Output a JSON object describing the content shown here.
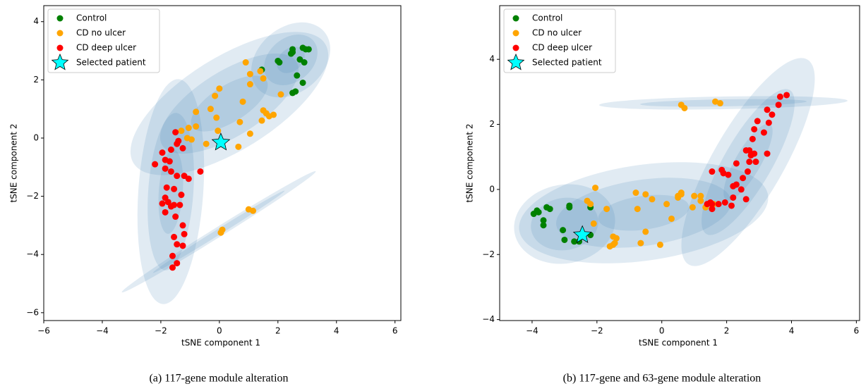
{
  "chart_data": [
    {
      "type": "scatter",
      "caption": "(a) 117-gene module alteration",
      "xlabel": "tSNE component 1",
      "ylabel": "tSNE component 2",
      "xlim": [
        -6,
        6.2
      ],
      "ylim": [
        -6.27,
        4.55
      ],
      "xticks": [
        {
          "value": -6,
          "label": "−6"
        },
        {
          "value": -4,
          "label": "−4"
        },
        {
          "value": -2,
          "label": "−2"
        },
        0,
        2,
        4,
        6
      ],
      "yticks": [
        {
          "value": -6,
          "label": "−6"
        },
        {
          "value": -4,
          "label": "−4"
        },
        {
          "value": -2,
          "label": "−2"
        },
        0,
        2,
        4
      ],
      "legend": "upper left",
      "series": [
        {
          "name": "Control",
          "color": "#008000",
          "marker": "circle",
          "x": [
            1.45,
            2.0,
            2.05,
            2.5,
            2.5,
            2.45,
            2.85,
            2.95,
            3.05,
            2.75,
            2.9,
            2.65,
            2.85,
            2.6,
            2.5
          ],
          "y": [
            2.35,
            2.65,
            2.6,
            3.05,
            2.95,
            2.9,
            3.1,
            3.05,
            3.05,
            2.7,
            2.6,
            2.15,
            1.9,
            1.6,
            1.55
          ]
        },
        {
          "name": "CD no ulcer",
          "color": "#ffa500",
          "marker": "circle",
          "x": [
            0.9,
            1.05,
            1.4,
            1.5,
            1.05,
            2.1,
            0.0,
            -0.15,
            -0.3,
            -0.1,
            0.8,
            1.5,
            1.6,
            1.7,
            1.85,
            1.45,
            1.05,
            0.7,
            0.65,
            -0.05,
            -0.8,
            -0.8,
            -1.05,
            -1.3,
            -1.1,
            -0.95,
            -0.45,
            1.0,
            1.15,
            0.1,
            0.05
          ],
          "y": [
            2.6,
            2.2,
            2.3,
            2.05,
            1.85,
            1.5,
            1.7,
            1.45,
            1.0,
            0.7,
            1.25,
            0.95,
            0.85,
            0.75,
            0.8,
            0.6,
            0.15,
            0.55,
            -0.3,
            0.25,
            0.9,
            0.4,
            0.35,
            0.25,
            0.0,
            -0.05,
            -0.2,
            -2.45,
            -2.5,
            -3.15,
            -3.25
          ]
        },
        {
          "name": "CD deep ulcer",
          "color": "#ff0000",
          "marker": "circle",
          "x": [
            -1.5,
            -1.4,
            -1.45,
            -1.65,
            -1.25,
            -1.95,
            -1.85,
            -1.7,
            -2.2,
            -1.85,
            -1.65,
            -1.45,
            -1.2,
            -1.05,
            -0.65,
            -1.8,
            -1.55,
            -1.3,
            -1.85,
            -1.75,
            -1.95,
            -1.55,
            -1.65,
            -1.35,
            -1.85,
            -1.5,
            -1.25,
            -1.2,
            -1.55,
            -1.45,
            -1.25,
            -1.6,
            -1.45,
            -1.6
          ],
          "y": [
            0.2,
            -0.1,
            -0.2,
            -0.4,
            -0.35,
            -0.5,
            -0.75,
            -0.8,
            -0.9,
            -1.05,
            -1.15,
            -1.3,
            -1.3,
            -1.4,
            -1.15,
            -1.7,
            -1.75,
            -1.95,
            -2.05,
            -2.2,
            -2.25,
            -2.3,
            -2.35,
            -2.3,
            -2.55,
            -2.7,
            -3.0,
            -3.3,
            -3.4,
            -3.65,
            -3.7,
            -4.05,
            -4.3,
            -4.45
          ]
        },
        {
          "name": "Selected patient",
          "color": "#00ffff",
          "marker": "star",
          "x": [
            0.05
          ],
          "y": [
            -0.15
          ]
        }
      ]
    },
    {
      "type": "scatter",
      "caption": "(b) 117-gene and 63-gene module alteration",
      "xlabel": "tSNE component 1",
      "ylabel": "tSNE component 2",
      "xlim": [
        -5,
        6.1
      ],
      "ylim": [
        -4.03,
        5.65
      ],
      "xticks": [
        {
          "value": -4,
          "label": "−4"
        },
        {
          "value": -2,
          "label": "−2"
        },
        0,
        2,
        4,
        6
      ],
      "yticks": [
        {
          "value": -4,
          "label": "−4"
        },
        {
          "value": -2,
          "label": "−2"
        },
        0,
        2,
        4
      ],
      "legend": "upper left",
      "series": [
        {
          "name": "Control",
          "color": "#008000",
          "marker": "circle",
          "x": [
            -3.95,
            -3.85,
            -3.8,
            -3.55,
            -3.45,
            -2.85,
            -2.85,
            -2.2,
            -3.65,
            -3.65,
            -3.05,
            -3.0,
            -2.7,
            -2.55,
            -2.2
          ],
          "y": [
            -0.75,
            -0.65,
            -0.7,
            -0.55,
            -0.6,
            -0.5,
            -0.55,
            -0.55,
            -0.95,
            -1.1,
            -1.25,
            -1.55,
            -1.6,
            -1.6,
            -1.4
          ]
        },
        {
          "name": "CD no ulcer",
          "color": "#ffa500",
          "marker": "circle",
          "x": [
            0.6,
            0.7,
            1.65,
            1.8,
            -2.05,
            -2.3,
            -2.2,
            -1.7,
            -2.1,
            -1.5,
            -1.4,
            -1.5,
            -1.6,
            -1.45,
            -0.8,
            -0.5,
            -0.3,
            -0.75,
            0.15,
            0.5,
            0.6,
            0.6,
            0.3,
            -0.5,
            -0.65,
            -0.05,
            1.0,
            1.2,
            0.95,
            1.35,
            1.2,
            1.6,
            0.5
          ],
          "y": [
            2.6,
            2.5,
            2.7,
            2.65,
            0.05,
            -0.35,
            -0.45,
            -0.6,
            -1.05,
            -1.45,
            -1.5,
            -1.7,
            -1.75,
            -1.65,
            -0.1,
            -0.15,
            -0.3,
            -0.6,
            -0.45,
            -0.2,
            -0.1,
            -0.15,
            -0.9,
            -1.3,
            -1.65,
            -1.7,
            -0.2,
            -0.2,
            -0.55,
            -0.55,
            -0.35,
            -0.45,
            -0.25
          ]
        },
        {
          "name": "CD deep ulcer",
          "color": "#ff0000",
          "marker": "circle",
          "x": [
            3.65,
            3.85,
            3.6,
            3.25,
            3.4,
            3.3,
            2.95,
            2.85,
            3.15,
            2.8,
            2.6,
            2.7,
            2.75,
            2.85,
            3.25,
            2.7,
            2.9,
            2.3,
            2.65,
            1.55,
            1.85,
            1.9,
            2.05,
            2.5,
            2.3,
            2.45,
            2.2,
            2.2,
            2.6,
            1.95,
            2.15,
            1.75,
            1.55,
            1.5,
            1.55,
            1.4
          ],
          "y": [
            2.85,
            2.9,
            2.6,
            2.45,
            2.3,
            2.05,
            2.1,
            1.85,
            1.75,
            1.55,
            1.2,
            1.2,
            1.05,
            1.1,
            1.1,
            0.85,
            0.85,
            0.8,
            0.55,
            0.55,
            0.6,
            0.5,
            0.45,
            0.35,
            0.15,
            0.0,
            0.1,
            -0.25,
            -0.3,
            -0.4,
            -0.5,
            -0.45,
            -0.45,
            -0.4,
            -0.6,
            -0.45
          ]
        },
        {
          "name": "Selected patient",
          "color": "#00ffff",
          "marker": "star",
          "x": [
            -2.45
          ],
          "y": [
            -1.4
          ]
        }
      ]
    }
  ]
}
